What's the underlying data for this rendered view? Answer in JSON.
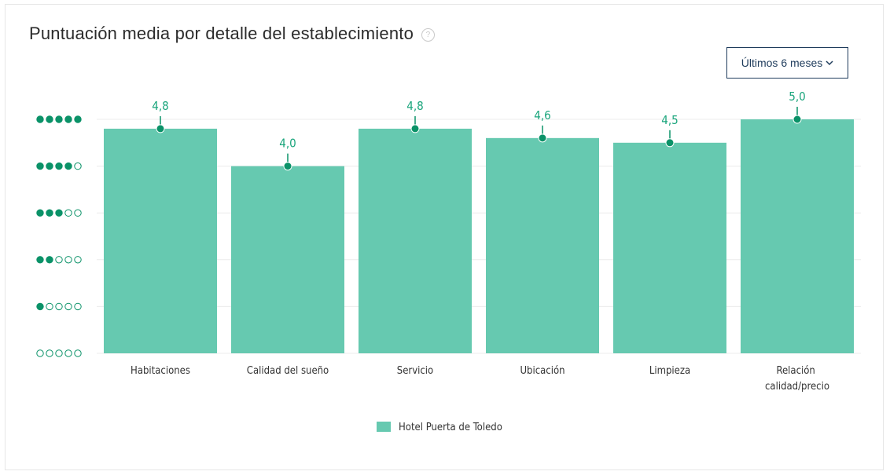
{
  "chart_data": {
    "type": "bar",
    "title": "Puntuación media por detalle del establecimiento",
    "help_icon": "?",
    "period_selector": "Últimos 6 meses",
    "categories": [
      "Habitaciones",
      "Calidad del sueño",
      "Servicio",
      "Ubicación",
      "Limpieza",
      "Relación calidad/precio"
    ],
    "series": [
      {
        "name": "Hotel Puerta de Toledo",
        "color": "#66c9b0",
        "values": [
          4.8,
          4.0,
          4.8,
          4.6,
          4.5,
          5.0
        ],
        "value_labels": [
          "4,8",
          "4,0",
          "4,8",
          "4,6",
          "4,5",
          "5,0"
        ]
      }
    ],
    "ylim": [
      0,
      5
    ],
    "yticks": [
      0,
      1,
      2,
      3,
      4,
      5
    ],
    "grid": true,
    "marker_color": "#0b9268",
    "label_color": "#1aa57c",
    "legend": "bottom"
  }
}
